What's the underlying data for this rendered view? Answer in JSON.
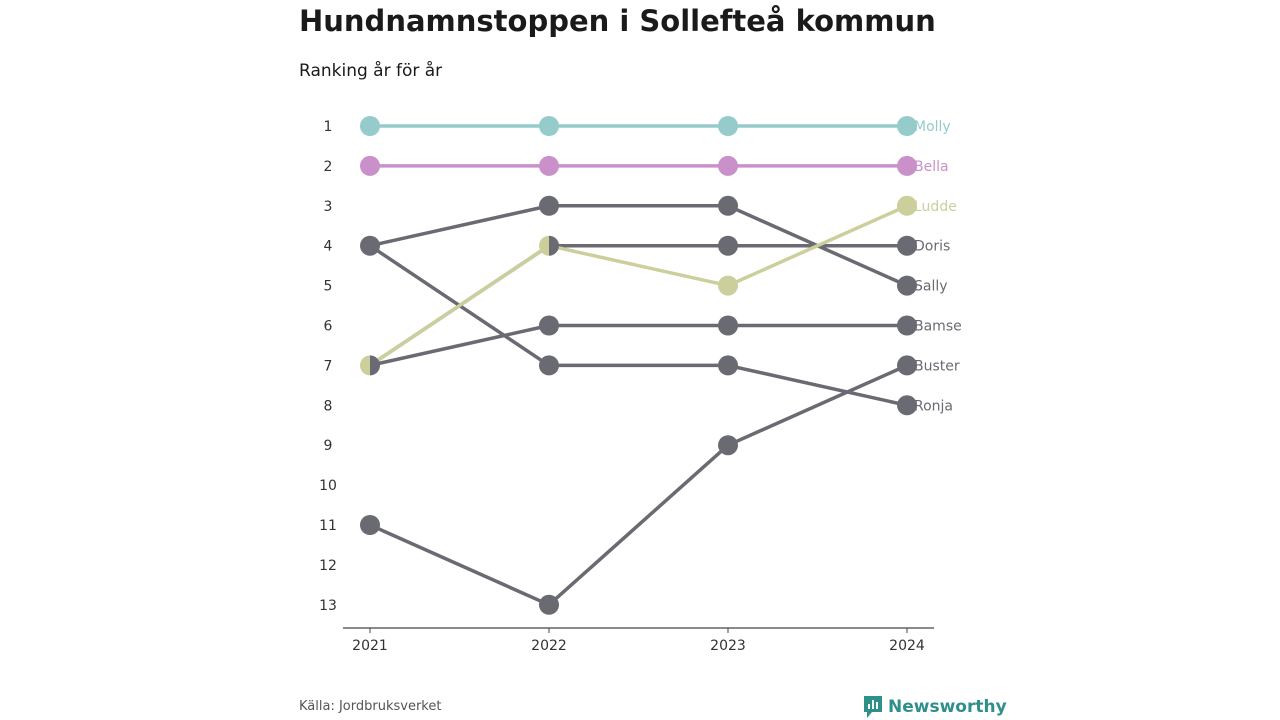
{
  "title": "Hundnamnstoppen i Sollefteå kommun",
  "subtitle": "Ranking år för år",
  "source": "Källa: Jordbruksverket",
  "brand": "Newsworthy",
  "chart_data": {
    "type": "line",
    "chart_subtype": "bump",
    "x": [
      "2021",
      "2022",
      "2023",
      "2024"
    ],
    "y_ticks": [
      "1",
      "2",
      "3",
      "4",
      "5",
      "6",
      "7",
      "8",
      "9",
      "10",
      "11",
      "12",
      "13"
    ],
    "ylim": [
      1,
      13
    ],
    "y_inverted": true,
    "series": [
      {
        "name": "Molly",
        "values": [
          1,
          1,
          1,
          1
        ],
        "color": "#96cbcc",
        "highlight": true
      },
      {
        "name": "Bella",
        "values": [
          2,
          2,
          2,
          2
        ],
        "color": "#c990c9",
        "highlight": true
      },
      {
        "name": "Ludde",
        "values": [
          7,
          4,
          5,
          3
        ],
        "color": "#cccf9c",
        "highlight": true
      },
      {
        "name": "Doris",
        "values": [
          7,
          4,
          4,
          4
        ],
        "color": "#6a6a72",
        "highlight": false
      },
      {
        "name": "Sally",
        "values": [
          4,
          3,
          3,
          5
        ],
        "color": "#6a6a72",
        "highlight": false
      },
      {
        "name": "Bamse",
        "values": [
          7,
          6,
          6,
          6
        ],
        "color": "#6a6a72",
        "highlight": false
      },
      {
        "name": "Buster",
        "values": [
          11,
          13,
          9,
          7
        ],
        "color": "#6a6a72",
        "highlight": false
      },
      {
        "name": "Ronja",
        "values": [
          4,
          7,
          7,
          8
        ],
        "color": "#6a6a72",
        "highlight": false
      }
    ]
  }
}
